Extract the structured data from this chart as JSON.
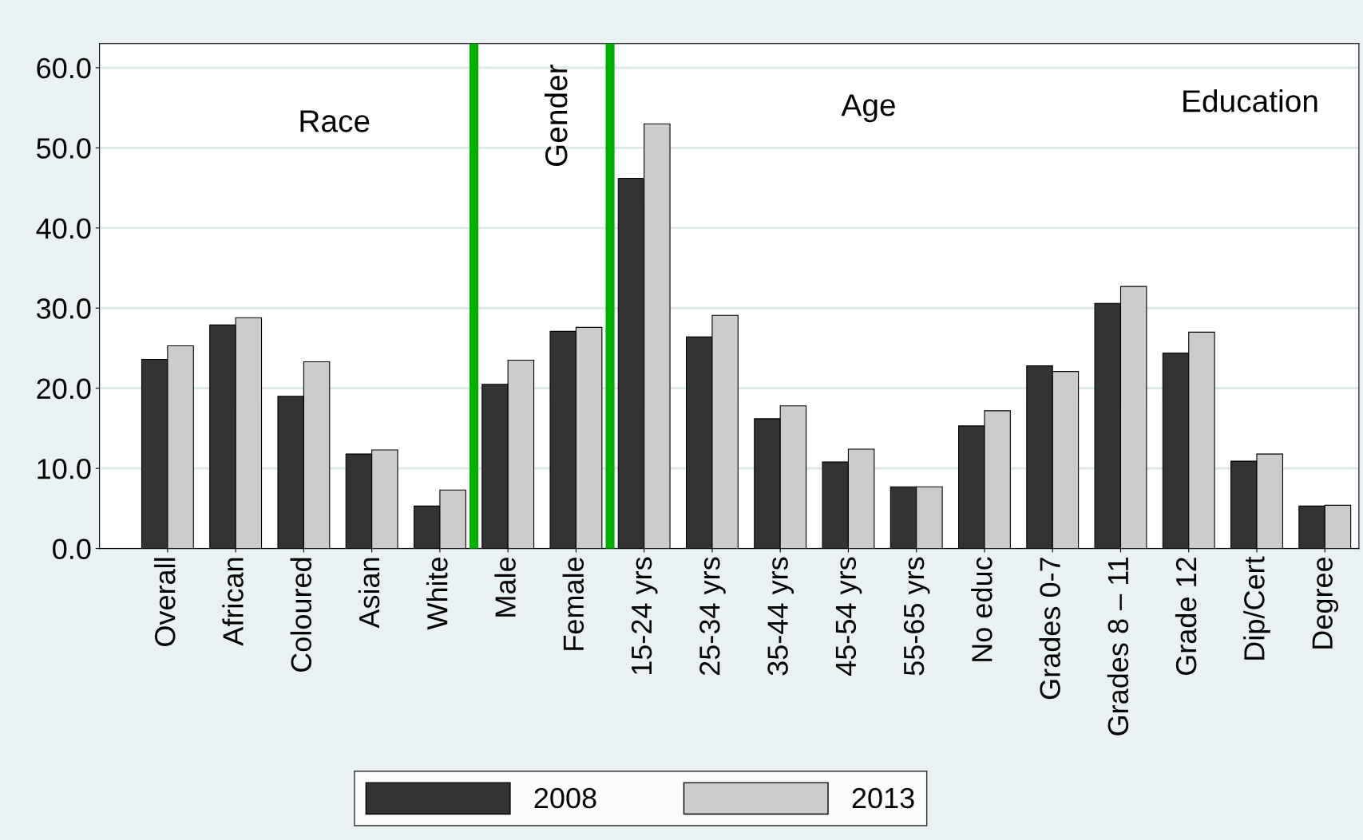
{
  "chart_data": {
    "type": "bar",
    "categories": [
      "Overall",
      "African",
      "Coloured",
      "Asian",
      "White",
      "Male",
      "Female",
      "15-24 yrs",
      "25-34 yrs",
      "35-44 yrs",
      "45-54 yrs",
      "55-65 yrs",
      "No educ",
      "Grades 0-7",
      "Grades 8 – 11",
      "Grade 12",
      "Dip/Cert",
      "Degree"
    ],
    "series": [
      {
        "name": "2008",
        "color": "#333333",
        "values": [
          23.6,
          27.9,
          19.0,
          11.8,
          5.3,
          20.5,
          27.1,
          46.2,
          26.4,
          16.2,
          10.8,
          7.7,
          15.3,
          22.8,
          30.6,
          24.4,
          10.9,
          5.3
        ]
      },
      {
        "name": "2013",
        "color": "#cccccc",
        "values": [
          25.3,
          28.8,
          23.3,
          12.3,
          7.3,
          23.5,
          27.6,
          53.0,
          29.1,
          17.8,
          12.4,
          7.7,
          17.2,
          22.1,
          32.7,
          27.0,
          11.8,
          5.4
        ]
      }
    ],
    "ylim": [
      0,
      63
    ],
    "yticks": [
      {
        "value": 0,
        "label": "0.0"
      },
      {
        "value": 10,
        "label": "10.0"
      },
      {
        "value": 20,
        "label": "20.0"
      },
      {
        "value": 30,
        "label": "30.0"
      },
      {
        "value": 40,
        "label": "40.0"
      },
      {
        "value": 50,
        "label": "50.0"
      },
      {
        "value": 60,
        "label": "60.0"
      }
    ],
    "grid": "y",
    "legend": "bottom",
    "annotations": [
      "Race",
      "Gender",
      "Age",
      "Education"
    ]
  }
}
